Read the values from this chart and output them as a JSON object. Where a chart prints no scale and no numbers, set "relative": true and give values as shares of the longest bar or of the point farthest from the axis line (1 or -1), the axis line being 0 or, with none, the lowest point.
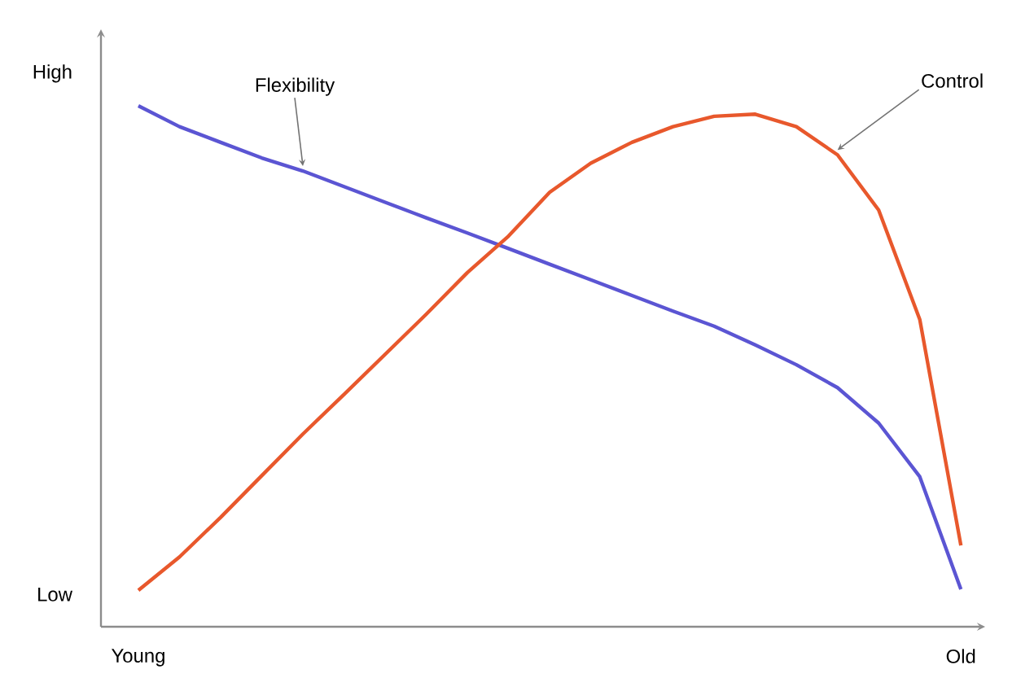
{
  "chart_data": {
    "type": "line",
    "relative": true,
    "categories": [
      "Young",
      null,
      null,
      null,
      null,
      null,
      null,
      null,
      null,
      null,
      null,
      null,
      null,
      null,
      null,
      null,
      null,
      null,
      null,
      null,
      "Old"
    ],
    "annotations": [
      "High",
      "Low"
    ],
    "series": [
      {
        "name": "Flexibility",
        "color": "#5b55d3",
        "values": [
          1,
          0.96,
          0.93,
          0.9,
          0.875,
          0.845,
          0.815,
          0.785,
          0.756,
          0.726,
          0.696,
          0.666,
          0.636,
          0.606,
          0.577,
          0.541,
          0.503,
          0.459,
          0.391,
          0.288,
          0.072
        ]
      },
      {
        "name": "Control",
        "color": "#e8582c",
        "values": [
          0.07,
          0.134,
          0.21,
          0.29,
          0.37,
          0.446,
          0.523,
          0.6,
          0.68,
          0.75,
          0.834,
          0.89,
          0.93,
          0.96,
          0.98,
          0.984,
          0.96,
          0.906,
          0.8,
          0.59,
          0.156
        ]
      }
    ]
  }
}
